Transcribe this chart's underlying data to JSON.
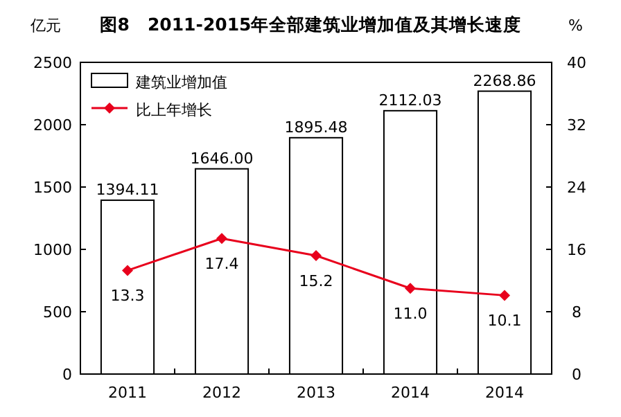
{
  "chart_data": {
    "type": "bar",
    "title": "图8　2011-2015年全部建筑业增加值及其增长速度",
    "ylabel": "亿元",
    "y2label": "%",
    "categories": [
      "2011",
      "2012",
      "2013",
      "2014",
      "2014"
    ],
    "series": [
      {
        "name": "建筑业增加值",
        "color": "#ffffff",
        "values": [
          1394.11,
          1646.0,
          1895.48,
          2112.03,
          2268.86
        ],
        "value_labels": [
          "1394.11",
          "1646.00",
          "1895.48",
          "2112.03",
          "2268.86"
        ]
      },
      {
        "name": "比上年增长",
        "type": "line",
        "axis": "y2",
        "color": "#e8001c",
        "marker": "diamond",
        "values": [
          13.3,
          17.4,
          15.2,
          11.0,
          10.1
        ],
        "value_labels": [
          "13.3",
          "17.4",
          "15.2",
          "11.0",
          "10.1"
        ]
      }
    ],
    "ylim": [
      0,
      2500
    ],
    "yticks": [
      0,
      500,
      1000,
      1500,
      2000,
      2500
    ],
    "y2lim": [
      0,
      40
    ],
    "y2ticks": [
      0,
      8,
      16,
      24,
      32,
      40
    ],
    "legend": "top left",
    "grid": false
  }
}
